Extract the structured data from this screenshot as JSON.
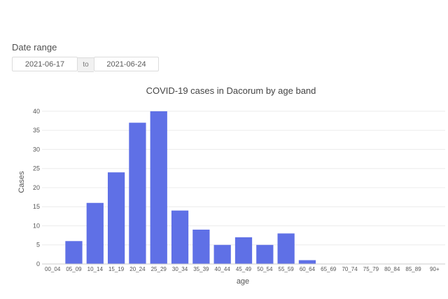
{
  "filter": {
    "label": "Date range",
    "start": "2021-06-17",
    "separator": "to",
    "end": "2021-06-24"
  },
  "colors": {
    "bar": "#5f70e6",
    "grid": "#ececec",
    "axis_text": "#555555"
  },
  "chart_data": {
    "type": "bar",
    "title": "COVID-19 cases in Dacorum by age band",
    "xlabel": "age",
    "ylabel": "Cases",
    "ylim": [
      0,
      42
    ],
    "yticks": [
      0,
      5,
      10,
      15,
      20,
      25,
      30,
      35,
      40
    ],
    "grid": true,
    "categories": [
      "00_04",
      "05_09",
      "10_14",
      "15_19",
      "20_24",
      "25_29",
      "30_34",
      "35_39",
      "40_44",
      "45_49",
      "50_54",
      "55_59",
      "60_64",
      "65_69",
      "70_74",
      "75_79",
      "80_84",
      "85_89",
      "90+"
    ],
    "values": [
      0,
      6,
      16,
      24,
      37,
      40,
      14,
      9,
      5,
      7,
      5,
      8,
      1,
      0,
      0,
      0,
      0,
      0,
      0
    ]
  }
}
